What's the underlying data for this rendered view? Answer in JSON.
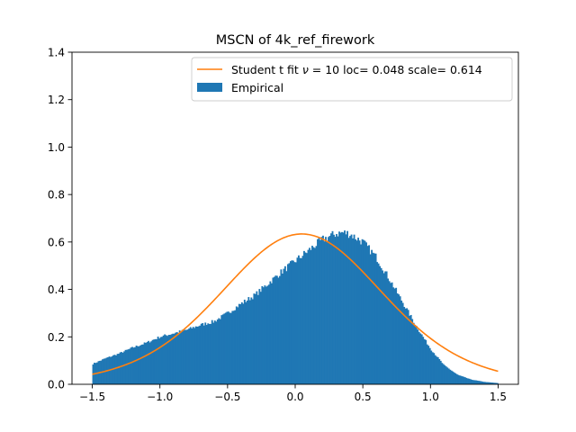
{
  "chart_data": {
    "type": "bar",
    "title": "MSCN of 4k_ref_firework",
    "xlabel": "",
    "ylabel": "",
    "xlim": [
      -1.65,
      1.65
    ],
    "ylim": [
      0,
      1.4
    ],
    "xticks": [
      -1.5,
      -1.0,
      -0.5,
      0.0,
      0.5,
      1.0,
      1.5
    ],
    "xtick_labels": [
      "−1.5",
      "−1.0",
      "−0.5",
      "0.0",
      "0.5",
      "1.0",
      "1.5"
    ],
    "yticks": [
      0.0,
      0.2,
      0.4,
      0.6,
      0.8,
      1.0,
      1.2,
      1.4
    ],
    "ytick_labels": [
      "0.0",
      "0.2",
      "0.4",
      "0.6",
      "0.8",
      "1.0",
      "1.2",
      "1.4"
    ],
    "legend_position": "top-right",
    "grid": false,
    "histogram": {
      "name": "Empirical",
      "color": "#1f77b4",
      "range": [
        -1.5,
        1.5
      ],
      "profile_x": [
        -1.5,
        -1.4,
        -1.3,
        -1.2,
        -1.1,
        -1.0,
        -0.9,
        -0.8,
        -0.7,
        -0.6,
        -0.5,
        -0.4,
        -0.3,
        -0.2,
        -0.1,
        0.0,
        0.1,
        0.2,
        0.3,
        0.35,
        0.4,
        0.5,
        0.6,
        0.7,
        0.8,
        0.9,
        1.0,
        1.1,
        1.2,
        1.3,
        1.4,
        1.5
      ],
      "profile_y": [
        0.085,
        0.11,
        0.13,
        0.155,
        0.175,
        0.2,
        0.215,
        0.23,
        0.25,
        0.265,
        0.3,
        0.34,
        0.375,
        0.425,
        0.475,
        0.52,
        0.565,
        0.61,
        0.635,
        0.64,
        0.635,
        0.6,
        0.535,
        0.44,
        0.34,
        0.24,
        0.15,
        0.08,
        0.04,
        0.02,
        0.01,
        0.005
      ]
    },
    "fit": {
      "name": "Student t fit ν = 10 loc= 0.048 scale= 0.614",
      "name_prefix": "Student t fit ",
      "name_nu": "ν",
      "name_suffix": " = 10 loc= 0.048 scale= 0.614",
      "color": "#ff7f0e",
      "df": 10,
      "loc": 0.048,
      "scale": 0.614,
      "x_range": [
        -1.5,
        1.5
      ]
    }
  }
}
